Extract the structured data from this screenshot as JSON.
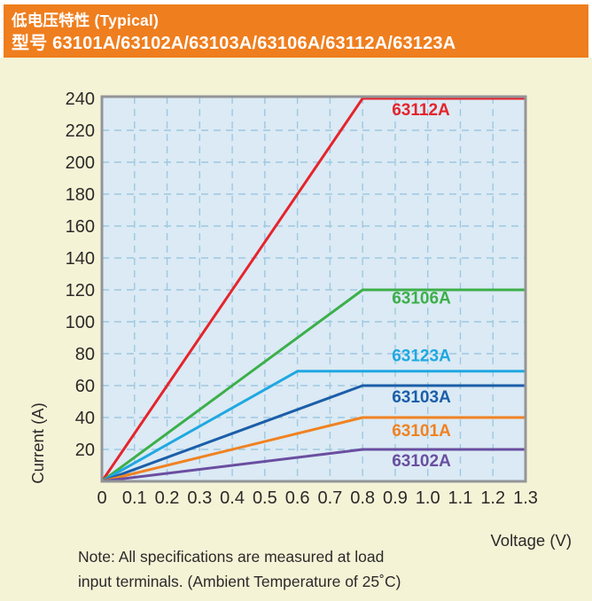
{
  "header": {
    "title_line1": "低电压特性 (Typical)",
    "title_line2": "型号 63101A/63102A/63103A/63106A/63112A/63123A",
    "bg_color": "#EF7E1E",
    "text_color": "#FFFFFF"
  },
  "page": {
    "body_bg_color": "#F5F3D6"
  },
  "chart_data": {
    "type": "line",
    "title": "",
    "xlabel": "Voltage (V)",
    "ylabel": "Current (A)",
    "xlim": [
      0,
      1.3
    ],
    "ylim": [
      0,
      240
    ],
    "x_tick_step": 0.1,
    "x_tick_labels": [
      "0",
      "0.1",
      "0.2",
      "0.3",
      "0.4",
      "0.5",
      "0.6",
      "0.7",
      "0.8",
      "0.9",
      "1.0",
      "1.1",
      "1.2",
      "1.3"
    ],
    "y_tick_values": [
      240,
      220,
      200,
      180,
      160,
      140,
      120,
      100,
      80,
      60,
      40,
      20
    ],
    "y_tick_labels": [
      "240",
      "220",
      "200",
      "180",
      "160",
      "140",
      "120",
      "100",
      "80",
      "60",
      "40",
      "20"
    ],
    "grid": "dashed, 0.1 V vertical / 20 A horizontal",
    "legend_position": "inline-labels",
    "plot_bg_color": "#DBEAF4",
    "grid_color": "#9EC8E2",
    "border_color": "#939598",
    "tick_text_color": "#2B2A29",
    "series": [
      {
        "name": "63112A",
        "color": "#E5242C",
        "points": [
          [
            0,
            0
          ],
          [
            0.8,
            240
          ],
          [
            1.3,
            240
          ]
        ],
        "label_pos": [
          0.89,
          233
        ]
      },
      {
        "name": "63106A",
        "color": "#3CAF4A",
        "points": [
          [
            0,
            0
          ],
          [
            0.8,
            120
          ],
          [
            1.3,
            120
          ]
        ],
        "label_pos": [
          0.89,
          115
        ]
      },
      {
        "name": "63123A",
        "color": "#1FA8E1",
        "points": [
          [
            0,
            0
          ],
          [
            0.6,
            69
          ],
          [
            1.3,
            69
          ]
        ],
        "label_pos": [
          0.89,
          79
        ]
      },
      {
        "name": "63103A",
        "color": "#1B5EA9",
        "points": [
          [
            0,
            0
          ],
          [
            0.8,
            60
          ],
          [
            1.3,
            60
          ]
        ],
        "label_pos": [
          0.89,
          53
        ]
      },
      {
        "name": "63101A",
        "color": "#F08221",
        "points": [
          [
            0,
            0
          ],
          [
            0.8,
            40
          ],
          [
            1.3,
            40
          ]
        ],
        "label_pos": [
          0.89,
          32
        ]
      },
      {
        "name": "63102A",
        "color": "#6A4EA0",
        "points": [
          [
            0,
            0
          ],
          [
            0.8,
            20
          ],
          [
            1.3,
            20
          ]
        ],
        "label_pos": [
          0.89,
          13
        ]
      }
    ]
  },
  "note": {
    "line1": "Note: All specifications are measured at load",
    "line2": "input terminals. (Ambient Temperature of 25˚C)"
  }
}
